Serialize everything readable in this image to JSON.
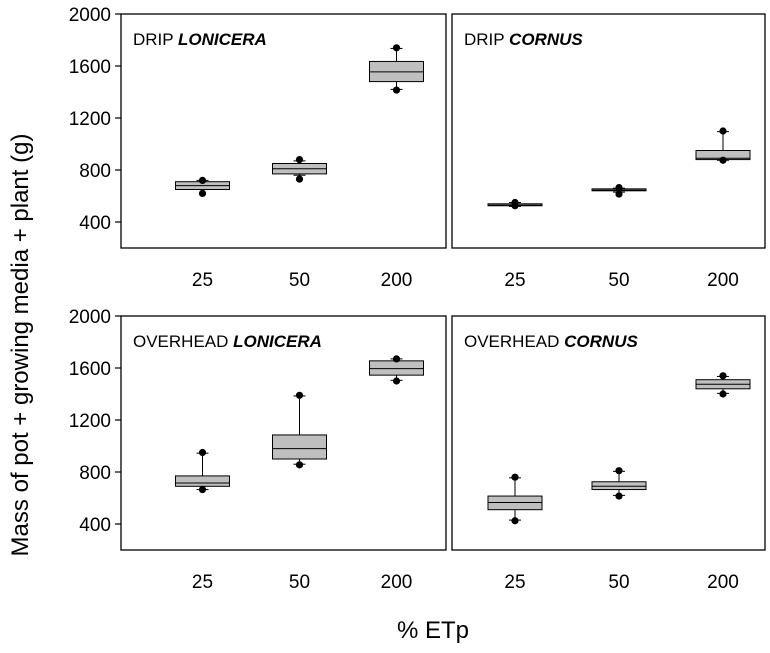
{
  "y_axis_label": "Mass of pot + growing media + plant (g)",
  "x_axis_label": "% ETp",
  "colors": {
    "box_fill": "#bfbfbf",
    "stroke": "#000000",
    "background": "#ffffff"
  },
  "chart_data": [
    {
      "type": "boxplot",
      "title_prefix": "DRIP",
      "title_species": "LONICERA",
      "categories": [
        "25",
        "50",
        "200"
      ],
      "ylim": [
        200,
        2000
      ],
      "yticks": [
        "400",
        "800",
        "1200",
        "1600",
        "2000"
      ],
      "boxes": [
        {
          "whisker_low": 650,
          "q1": 650,
          "median": 680,
          "q3": 710,
          "whisker_high": 720,
          "outliers": [
            620,
            720
          ]
        },
        {
          "whisker_low": 760,
          "q1": 770,
          "median": 810,
          "q3": 850,
          "whisker_high": 870,
          "outliers": [
            730,
            880
          ]
        },
        {
          "whisker_low": 1420,
          "q1": 1480,
          "median": 1555,
          "q3": 1635,
          "whisker_high": 1735,
          "outliers": [
            1415,
            1740
          ]
        }
      ]
    },
    {
      "type": "boxplot",
      "title_prefix": "DRIP",
      "title_species": "CORNUS",
      "categories": [
        "25",
        "50",
        "200"
      ],
      "ylim": [
        200,
        2000
      ],
      "yticks": [
        "400",
        "800",
        "1200",
        "1600",
        "2000"
      ],
      "boxes": [
        {
          "whisker_low": 520,
          "q1": 525,
          "median": 530,
          "q3": 540,
          "whisker_high": 550,
          "outliers": [
            525,
            550
          ]
        },
        {
          "whisker_low": 630,
          "q1": 640,
          "median": 645,
          "q3": 655,
          "whisker_high": 660,
          "outliers": [
            615,
            665
          ]
        },
        {
          "whisker_low": 875,
          "q1": 880,
          "median": 890,
          "q3": 950,
          "whisker_high": 1095,
          "outliers": [
            875,
            1100
          ]
        }
      ]
    },
    {
      "type": "boxplot",
      "title_prefix": "OVERHEAD",
      "title_species": "LONICERA",
      "categories": [
        "25",
        "50",
        "200"
      ],
      "ylim": [
        200,
        2000
      ],
      "yticks": [
        "400",
        "800",
        "1200",
        "1600",
        "2000"
      ],
      "boxes": [
        {
          "whisker_low": 665,
          "q1": 690,
          "median": 715,
          "q3": 770,
          "whisker_high": 945,
          "outliers": [
            665,
            950
          ]
        },
        {
          "whisker_low": 860,
          "q1": 900,
          "median": 980,
          "q3": 1085,
          "whisker_high": 1385,
          "outliers": [
            855,
            1390
          ]
        },
        {
          "whisker_low": 1505,
          "q1": 1545,
          "median": 1595,
          "q3": 1655,
          "whisker_high": 1670,
          "outliers": [
            1500,
            1670
          ]
        }
      ]
    },
    {
      "type": "boxplot",
      "title_prefix": "OVERHEAD",
      "title_species": "CORNUS",
      "categories": [
        "25",
        "50",
        "200"
      ],
      "ylim": [
        200,
        2000
      ],
      "yticks": [
        "400",
        "800",
        "1200",
        "1600",
        "2000"
      ],
      "boxes": [
        {
          "whisker_low": 430,
          "q1": 510,
          "median": 565,
          "q3": 615,
          "whisker_high": 755,
          "outliers": [
            425,
            760
          ]
        },
        {
          "whisker_low": 620,
          "q1": 665,
          "median": 690,
          "q3": 725,
          "whisker_high": 805,
          "outliers": [
            615,
            810
          ]
        },
        {
          "whisker_low": 1405,
          "q1": 1440,
          "median": 1475,
          "q3": 1510,
          "whisker_high": 1535,
          "outliers": [
            1400,
            1540
          ]
        }
      ]
    }
  ]
}
